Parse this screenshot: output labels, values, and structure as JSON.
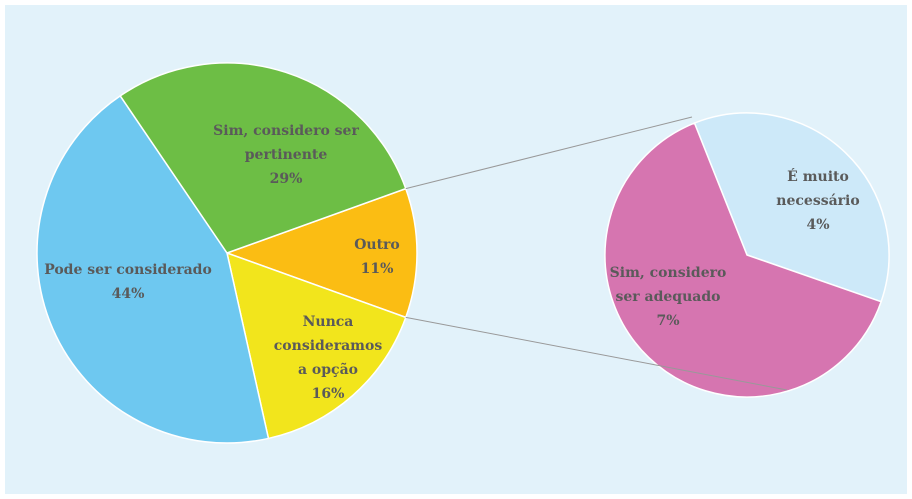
{
  "chart_data": {
    "type": "pie-of-pie",
    "categories": [
      "Outro",
      "Nunca consideramos a opção",
      "Pode ser considerado",
      "Sim, considero ser pertinente"
    ],
    "values": [
      11,
      16,
      44,
      29
    ],
    "value_labels": [
      "11%",
      "16%",
      "44%",
      "29%"
    ],
    "colors": [
      "#fbbd13",
      "#f2e51c",
      "#6ec8f0",
      "#6dbe45"
    ],
    "secondary": {
      "categories": [
        "É muito necessário",
        "Sim, considero ser adequado"
      ],
      "values": [
        4,
        7
      ],
      "value_labels": [
        "4%",
        "7%"
      ],
      "colors": [
        "#cde9f9",
        "#d675b0"
      ]
    }
  }
}
